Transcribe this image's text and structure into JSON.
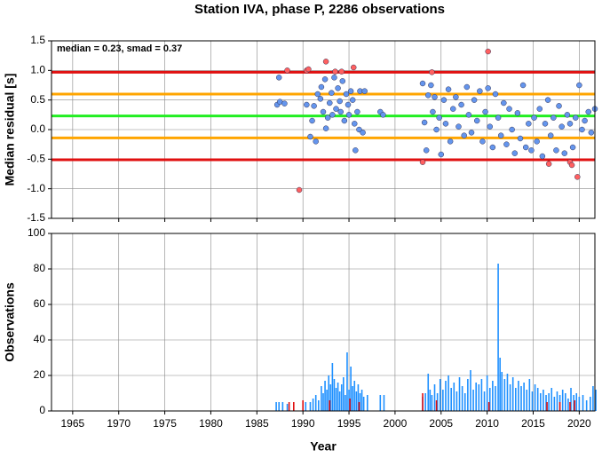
{
  "title": "Station IVA, phase P, 2286 observations",
  "chart_data": [
    {
      "type": "scatter",
      "annotation": "median = 0.23, smad = 0.37",
      "ylabel": "Median residual [s]",
      "xlim": [
        1962.7,
        2021.7
      ],
      "xticks": [
        1965,
        1970,
        1975,
        1980,
        1985,
        1990,
        1995,
        2000,
        2005,
        2010,
        2015,
        2020
      ],
      "ylim": [
        -1.5,
        1.5
      ],
      "yticks": [
        1.5,
        {
          "value": 1.0,
          "label": "1.0"
        },
        0.5,
        {
          "value": 0.0,
          "label": "0.0"
        },
        -0.5,
        {
          "value": -1.0,
          "label": "-1.0"
        },
        -1.5
      ],
      "grid": true,
      "reference_lines": [
        {
          "value": 0.97,
          "color": "#e01010"
        },
        {
          "value": 0.6,
          "color": "#ffa500"
        },
        {
          "value": 0.23,
          "color": "#22ee22"
        },
        {
          "value": -0.14,
          "color": "#ffa500"
        },
        {
          "value": -0.51,
          "color": "#e01010"
        }
      ],
      "series": [
        {
          "color": "#6495ed",
          "x": [
            1987.2,
            1987.4,
            1987.5,
            1988.0,
            1990.4,
            1990.8,
            1991.0,
            1991.2,
            1991.4,
            1991.6,
            1991.9,
            1992.0,
            1992.2,
            1992.4,
            1992.5,
            1992.7,
            1992.9,
            1993.1,
            1993.2,
            1993.4,
            1993.6,
            1993.8,
            1994.0,
            1994.1,
            1994.3,
            1994.5,
            1994.7,
            1994.9,
            1995.0,
            1995.2,
            1995.4,
            1995.6,
            1995.7,
            1995.9,
            1996.1,
            1996.2,
            1996.5,
            1996.7,
            1998.4,
            1998.7,
            2003.0,
            2003.2,
            2003.4,
            2003.6,
            2003.9,
            2004.1,
            2004.3,
            2004.5,
            2004.8,
            2005.0,
            2005.3,
            2005.5,
            2005.8,
            2006.0,
            2006.3,
            2006.6,
            2006.9,
            2007.2,
            2007.5,
            2007.8,
            2008.0,
            2008.3,
            2008.6,
            2008.9,
            2009.2,
            2009.5,
            2009.8,
            2010.1,
            2010.3,
            2010.6,
            2010.9,
            2011.2,
            2011.5,
            2011.8,
            2012.1,
            2012.4,
            2012.7,
            2013.0,
            2013.3,
            2013.6,
            2013.9,
            2014.2,
            2014.5,
            2014.8,
            2015.1,
            2015.4,
            2015.7,
            2016.0,
            2016.3,
            2016.6,
            2016.9,
            2017.2,
            2017.5,
            2017.8,
            2018.1,
            2018.4,
            2018.7,
            2019.0,
            2019.3,
            2019.6,
            2020.0,
            2020.3,
            2020.6,
            2021.0,
            2021.3,
            2021.7
          ],
          "values": [
            0.42,
            0.88,
            0.47,
            0.44,
            0.42,
            -0.12,
            0.15,
            0.4,
            -0.2,
            0.6,
            0.52,
            0.72,
            0.3,
            0.85,
            0.02,
            0.2,
            0.45,
            0.62,
            0.25,
            0.88,
            0.35,
            0.7,
            0.48,
            0.3,
            0.82,
            0.15,
            0.6,
            0.42,
            0.25,
            0.65,
            0.5,
            0.1,
            -0.35,
            0.3,
            0.0,
            0.65,
            -0.05,
            0.65,
            0.3,
            0.25,
            0.78,
            0.12,
            -0.35,
            0.58,
            0.75,
            0.3,
            0.55,
            0.0,
            0.2,
            -0.42,
            0.5,
            0.1,
            0.68,
            -0.2,
            0.35,
            0.55,
            0.05,
            0.42,
            -0.1,
            0.72,
            0.25,
            -0.05,
            0.5,
            0.15,
            0.65,
            -0.2,
            0.3,
            0.7,
            0.05,
            -0.3,
            0.6,
            0.2,
            -0.1,
            0.45,
            -0.25,
            0.35,
            0.0,
            -0.4,
            0.28,
            -0.15,
            0.75,
            -0.3,
            0.1,
            -0.35,
            0.2,
            -0.2,
            0.35,
            -0.45,
            0.1,
            0.5,
            -0.1,
            0.2,
            -0.35,
            0.4,
            0.05,
            -0.4,
            0.25,
            0.1,
            -0.3,
            0.2,
            0.75,
            0.0,
            0.15,
            0.3,
            -0.05,
            0.35
          ]
        },
        {
          "color": "#ff6060",
          "x": [
            1988.3,
            1989.6,
            1990.4,
            1990.6,
            1992.5,
            1993.5,
            1994.2,
            1995.5,
            2003.0,
            2004.0,
            2010.1,
            2016.7,
            2019.0,
            2019.2,
            2019.8
          ],
          "values": [
            1.0,
            -1.02,
            1.0,
            1.02,
            1.15,
            0.98,
            0.98,
            1.05,
            -0.55,
            0.97,
            1.32,
            -0.58,
            -0.55,
            -0.6,
            -0.8
          ]
        }
      ]
    },
    {
      "type": "bar",
      "xlabel": "Year",
      "ylabel": "Observations",
      "xlim": [
        1962.7,
        2021.7
      ],
      "xticks": [
        1965,
        1970,
        1975,
        1980,
        1985,
        1990,
        1995,
        2000,
        2005,
        2010,
        2015,
        2020
      ],
      "ylim": [
        0,
        100
      ],
      "yticks": [
        0,
        20,
        40,
        60,
        80,
        100
      ],
      "grid": true,
      "series": [
        {
          "color": "#1e90ff",
          "x": [
            1987.1,
            1987.4,
            1987.8,
            1988.3,
            1990.3,
            1990.8,
            1991.1,
            1991.4,
            1991.7,
            1992.0,
            1992.2,
            1992.4,
            1992.6,
            1992.8,
            1993.0,
            1993.2,
            1993.4,
            1993.6,
            1993.8,
            1994.0,
            1994.2,
            1994.4,
            1994.6,
            1994.8,
            1995.0,
            1995.2,
            1995.4,
            1995.6,
            1995.8,
            1996.0,
            1996.2,
            1996.4,
            1996.6,
            1997.0,
            1998.4,
            1998.8,
            2003.0,
            2003.3,
            2003.6,
            2003.8,
            2004.0,
            2004.3,
            2004.6,
            2004.9,
            2005.2,
            2005.5,
            2005.8,
            2006.1,
            2006.4,
            2006.7,
            2007.0,
            2007.3,
            2007.6,
            2007.9,
            2008.2,
            2008.5,
            2008.8,
            2009.1,
            2009.4,
            2009.7,
            2010.0,
            2010.3,
            2010.6,
            2010.9,
            2011.2,
            2011.4,
            2011.6,
            2011.9,
            2012.2,
            2012.5,
            2012.8,
            2013.1,
            2013.4,
            2013.7,
            2014.0,
            2014.3,
            2014.6,
            2014.9,
            2015.2,
            2015.5,
            2015.8,
            2016.1,
            2016.4,
            2016.7,
            2017.0,
            2017.3,
            2017.6,
            2017.9,
            2018.2,
            2018.5,
            2018.8,
            2019.1,
            2019.4,
            2019.7,
            2020.0,
            2020.4,
            2020.8,
            2021.2,
            2021.5,
            2021.8
          ],
          "values": [
            5,
            5,
            5,
            4,
            5,
            5,
            7,
            9,
            6,
            14,
            10,
            17,
            12,
            20,
            15,
            27,
            18,
            13,
            16,
            11,
            15,
            19,
            9,
            33,
            12,
            25,
            14,
            17,
            11,
            15,
            10,
            12,
            8,
            9,
            9,
            9,
            8,
            10,
            21,
            12,
            9,
            15,
            10,
            18,
            12,
            17,
            20,
            13,
            16,
            11,
            19,
            14,
            10,
            18,
            23,
            12,
            16,
            15,
            18,
            11,
            20,
            13,
            17,
            14,
            83,
            30,
            22,
            18,
            21,
            15,
            19,
            13,
            17,
            14,
            16,
            12,
            18,
            11,
            15,
            13,
            10,
            12,
            9,
            10,
            13,
            8,
            11,
            9,
            12,
            10,
            7,
            13,
            9,
            10,
            8,
            9,
            6,
            8,
            14,
            12
          ]
        },
        {
          "color": "#e01010",
          "x": [
            1988.5,
            1989.0,
            1990.0,
            1992.9,
            1995.1,
            1996.1,
            2003.0,
            2004.5,
            2010.2,
            2016.5,
            2017.9,
            2019.0,
            2019.5
          ],
          "values": [
            5,
            5,
            6,
            6,
            7,
            5,
            10,
            6,
            5,
            5,
            5,
            5,
            6
          ]
        }
      ]
    }
  ]
}
